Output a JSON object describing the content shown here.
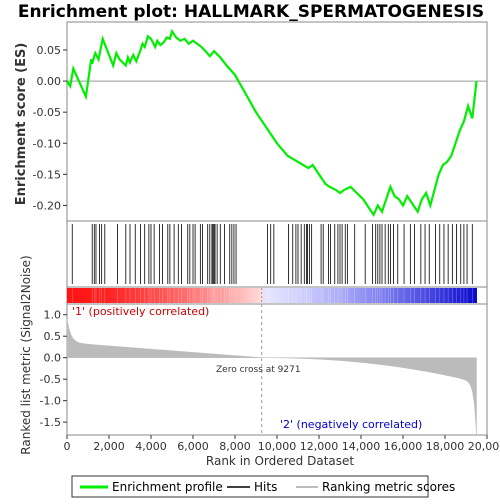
{
  "chart_data": {
    "type": "line",
    "title": "Enrichment plot: HALLMARK_SPERMATOGENESIS",
    "es_panel": {
      "ylabel": "Enrichment score (ES)",
      "ylim": [
        -0.225,
        0.095
      ],
      "yticks": [
        0.05,
        0.0,
        -0.05,
        -0.1,
        -0.15,
        -0.2
      ],
      "ytick_labels": [
        "0.05",
        "0.00",
        "-0.05",
        "-0.10",
        "-0.15",
        "-0.20"
      ],
      "zero_line": true
    },
    "rank_panel": {
      "ylabel": "Ranked list metric (Signal2Noise)",
      "ylim": [
        -1.8,
        1.25
      ],
      "yticks": [
        1.0,
        0.5,
        0.0,
        -0.5,
        -1.0,
        -1.5
      ],
      "ytick_labels": [
        "1.0",
        "0.5",
        "0.0",
        "-0.5",
        "-1.0",
        "-1.5"
      ]
    },
    "x_axis": {
      "xlabel": "Rank in Ordered Dataset",
      "xlim": [
        0,
        20000
      ],
      "xticks": [
        0,
        2000,
        4000,
        6000,
        8000,
        10000,
        12000,
        14000,
        16000,
        18000,
        20000
      ],
      "xtick_labels": [
        "0",
        "2,000",
        "4,000",
        "6,000",
        "8,000",
        "10,000",
        "12,000",
        "14,000",
        "16,000",
        "18,000",
        "20,000"
      ],
      "n_ranks": 19500
    },
    "series": [
      {
        "name": "Enrichment profile",
        "color": "#00ee00",
        "x": [
          0,
          150,
          300,
          900,
          1150,
          1200,
          1300,
          1350,
          1500,
          1700,
          2200,
          2350,
          2500,
          2800,
          2900,
          3000,
          3150,
          3300,
          3500,
          3600,
          3700,
          3850,
          4000,
          4200,
          4300,
          4450,
          4600,
          4750,
          4900,
          5000,
          5200,
          5400,
          5600,
          5800,
          6000,
          6200,
          6400,
          6600,
          6800,
          7000,
          7300,
          7600,
          8000,
          8500,
          9000,
          9500,
          10000,
          10500,
          11000,
          11500,
          11700,
          12000,
          12300,
          12500,
          12800,
          13000,
          13200,
          13500,
          13800,
          14100,
          14400,
          14600,
          14800,
          15000,
          15200,
          15400,
          15600,
          15800,
          16000,
          16200,
          16400,
          16700,
          16900,
          17100,
          17300,
          17500,
          17700,
          17900,
          18100,
          18300,
          18500,
          18700,
          18900,
          19100,
          19300,
          19500
        ],
        "y": [
          0.0,
          -0.008,
          0.02,
          -0.025,
          0.035,
          0.028,
          0.04,
          0.045,
          0.035,
          0.068,
          0.025,
          0.045,
          0.035,
          0.025,
          0.038,
          0.03,
          0.042,
          0.032,
          0.05,
          0.06,
          0.055,
          0.072,
          0.068,
          0.055,
          0.065,
          0.058,
          0.062,
          0.07,
          0.068,
          0.08,
          0.07,
          0.065,
          0.068,
          0.06,
          0.065,
          0.06,
          0.055,
          0.048,
          0.04,
          0.048,
          0.038,
          0.025,
          0.01,
          -0.02,
          -0.05,
          -0.075,
          -0.1,
          -0.12,
          -0.13,
          -0.14,
          -0.135,
          -0.15,
          -0.165,
          -0.17,
          -0.175,
          -0.18,
          -0.175,
          -0.17,
          -0.18,
          -0.19,
          -0.205,
          -0.215,
          -0.2,
          -0.21,
          -0.19,
          -0.17,
          -0.185,
          -0.19,
          -0.2,
          -0.185,
          -0.195,
          -0.21,
          -0.19,
          -0.18,
          -0.2,
          -0.175,
          -0.15,
          -0.135,
          -0.13,
          -0.12,
          -0.1,
          -0.08,
          -0.065,
          -0.04,
          -0.06,
          0.0
        ]
      }
    ],
    "hits_x": [
      250,
      1200,
      1300,
      1380,
      1550,
      1650,
      1800,
      2400,
      2800,
      3000,
      3250,
      3500,
      3700,
      3900,
      4000,
      4150,
      4400,
      4550,
      4800,
      4900,
      5100,
      5300,
      5450,
      5750,
      5850,
      6000,
      6100,
      6350,
      6450,
      6700,
      6800,
      6900,
      6950,
      7000,
      7050,
      7150,
      7300,
      7500,
      7750,
      7850,
      7950,
      8050,
      9550,
      9700,
      9850,
      10550,
      10750,
      10900,
      11000,
      11150,
      11300,
      11400,
      11450,
      11550,
      11650,
      12100,
      12200,
      12450,
      12550,
      12750,
      12900,
      13000,
      13100,
      13250,
      13350,
      13700,
      14200,
      14550,
      14700,
      14800,
      14900,
      15000,
      15150,
      15300,
      15400,
      15550,
      15750,
      16050,
      16350,
      16550,
      16850,
      17050,
      17250,
      17550,
      17750,
      17950,
      18150,
      18350,
      18550,
      18750,
      18900,
      19050,
      19300
    ],
    "hits_label": "Hits",
    "ranking_label": "Ranking metric scores",
    "ranking_color": "#bbbbbb",
    "zero_cross_label": "Zero cross at 9271",
    "zero_cross_x": 9271,
    "pos_label": "'1' (positively correlated)",
    "neg_label": "'2' (negatively correlated)",
    "pos_color": "#cc0000",
    "neg_color": "#0000cc"
  },
  "legend": {
    "items": [
      {
        "label": "Enrichment profile",
        "color": "#00ee00"
      },
      {
        "label": "Hits",
        "color": "#000000"
      },
      {
        "label": "Ranking metric scores",
        "color": "#bbbbbb"
      }
    ]
  }
}
